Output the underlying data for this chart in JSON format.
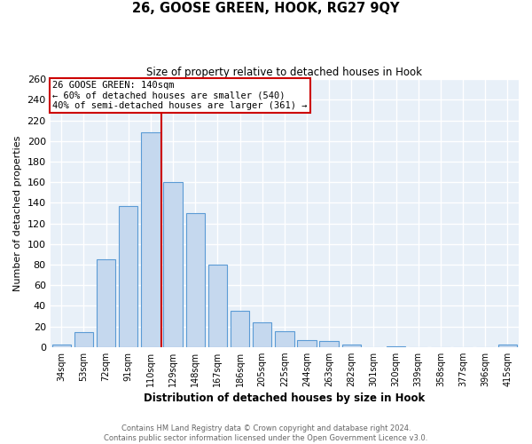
{
  "title": "26, GOOSE GREEN, HOOK, RG27 9QY",
  "subtitle": "Size of property relative to detached houses in Hook",
  "xlabel": "Distribution of detached houses by size in Hook",
  "ylabel": "Number of detached properties",
  "categories": [
    "34sqm",
    "53sqm",
    "72sqm",
    "91sqm",
    "110sqm",
    "129sqm",
    "148sqm",
    "167sqm",
    "186sqm",
    "205sqm",
    "225sqm",
    "244sqm",
    "263sqm",
    "282sqm",
    "301sqm",
    "320sqm",
    "339sqm",
    "358sqm",
    "377sqm",
    "396sqm",
    "415sqm"
  ],
  "values": [
    2,
    14,
    85,
    137,
    208,
    160,
    130,
    80,
    35,
    24,
    15,
    7,
    6,
    2,
    0,
    1,
    0,
    0,
    0,
    0,
    2
  ],
  "bar_color": "#c5d8ee",
  "bar_edge_color": "#5b9bd5",
  "annotation_text_line1": "26 GOOSE GREEN: 140sqm",
  "annotation_text_line2": "← 60% of detached houses are smaller (540)",
  "annotation_text_line3": "40% of semi-detached houses are larger (361) →",
  "vline_color": "#cc0000",
  "annotation_box_edge_color": "#cc0000",
  "footer_line1": "Contains HM Land Registry data © Crown copyright and database right 2024.",
  "footer_line2": "Contains public sector information licensed under the Open Government Licence v3.0.",
  "ylim": [
    0,
    260
  ],
  "yticks": [
    0,
    20,
    40,
    60,
    80,
    100,
    120,
    140,
    160,
    180,
    200,
    220,
    240,
    260
  ],
  "background_color": "#e8f0f8",
  "grid_color": "white",
  "fig_background": "white",
  "vline_x_index": 5.5
}
